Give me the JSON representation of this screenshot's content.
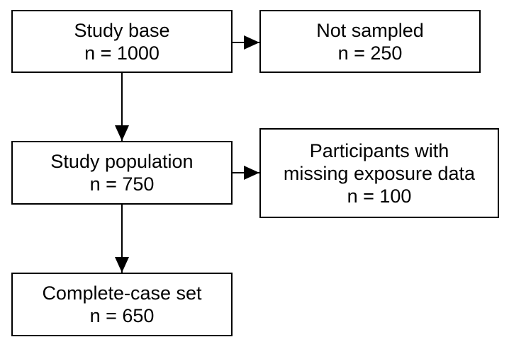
{
  "colors": {
    "line": "#000000",
    "box_fill": "#ffffff",
    "background": "#ffffff"
  },
  "boxes": {
    "study_base": {
      "title": "Study base",
      "count": "n = 1000"
    },
    "not_sampled": {
      "title": "Not sampled",
      "count": "n = 250"
    },
    "study_population": {
      "title": "Study population",
      "count": "n = 750"
    },
    "missing_exposure": {
      "line1": "Participants with",
      "line2": "missing exposure data",
      "count": "n = 100"
    },
    "complete_case": {
      "title": "Complete-case set",
      "count": "n = 650"
    }
  },
  "edges": [
    {
      "from": "study_base",
      "to": "not_sampled"
    },
    {
      "from": "study_base",
      "to": "study_population"
    },
    {
      "from": "study_population",
      "to": "missing_exposure"
    },
    {
      "from": "study_population",
      "to": "complete_case"
    }
  ]
}
